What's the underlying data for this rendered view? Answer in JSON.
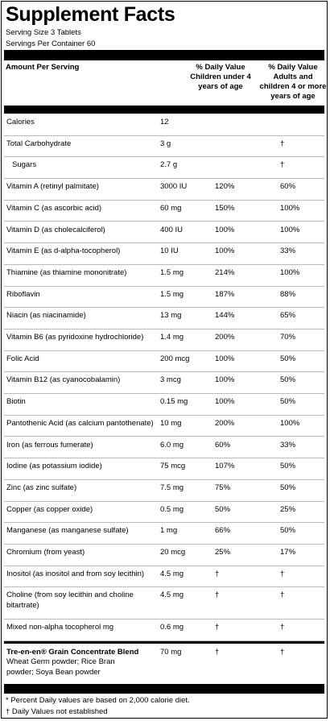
{
  "title": "Supplement Facts",
  "serving_size": "Serving Size 3 Tablets",
  "servings_per_container": "Servings Per Container 60",
  "header": {
    "amount": "Amount Per Serving",
    "child": "% Daily Value Children under 4 years of age",
    "adult": "% Daily Value Adults and children 4 or more years of age"
  },
  "rows": [
    {
      "name": "Calories",
      "amount": "12"
    },
    {
      "name": "Total Carbohydrate",
      "amount": "3 g",
      "adult": "†"
    },
    {
      "name": "Sugars",
      "amount": "2.7 g",
      "adult": "†"
    },
    {
      "name": "Vitamin A (retinyl palmitate)",
      "amount": "3000 IU",
      "child": "120%",
      "adult": "60%"
    },
    {
      "name": "Vitamin C (as ascorbic acid)",
      "amount": "60 mg",
      "child": "150%",
      "adult": "100%"
    },
    {
      "name": "Vitamin D (as cholecalciferol)",
      "amount": "400 IU",
      "child": "100%",
      "adult": "100%"
    },
    {
      "name": "Vitamin E (as d-alpha-tocopherol)",
      "amount": "10 IU",
      "child": "100%",
      "adult": "33%"
    },
    {
      "name": "Thiamine (as thiamine mononitrate)",
      "amount": "1.5 mg",
      "child": "214%",
      "adult": "100%"
    },
    {
      "name": "Riboflavin",
      "amount": "1.5 mg",
      "child": "187%",
      "adult": "88%"
    },
    {
      "name": "Niacin (as niacinamide)",
      "amount": "13 mg",
      "child": "144%",
      "adult": "65%"
    },
    {
      "name": "Vitamin B6 (as pyridoxine hydrochloride)",
      "amount": "1.4 mg",
      "child": "200%",
      "adult": "70%"
    },
    {
      "name": "Folic Acid",
      "amount": "200 mcg",
      "child": "100%",
      "adult": "50%"
    },
    {
      "name": "Vitamin B12 (as cyanocobalamin)",
      "amount": "3 mcg",
      "child": "100%",
      "adult": "50%"
    },
    {
      "name": "Biotin",
      "amount": "0.15 mg",
      "child": "100%",
      "adult": "50%"
    },
    {
      "name": "Pantothenic Acid (as calcium pantothenate)",
      "amount": "10 mg",
      "child": "200%",
      "adult": "100%"
    },
    {
      "name": "Iron (as ferrous fumerate)",
      "amount": "6.0 mg",
      "child": "60%",
      "adult": "33%"
    },
    {
      "name": "Iodine (as potassium iodide)",
      "amount": "75 mcg",
      "child": "107%",
      "adult": "50%"
    },
    {
      "name": "Zinc (as zinc sulfate)",
      "amount": "7.5 mg",
      "child": "75%",
      "adult": "50%"
    },
    {
      "name": "Copper (as copper oxide)",
      "amount": "0.5 mg",
      "child": "50%",
      "adult": "25%"
    },
    {
      "name": "Manganese (as manganese sulfate)",
      "amount": "1 mg",
      "child": "66%",
      "adult": "50%"
    },
    {
      "name": "Chromium (from yeast)",
      "amount": "20 mcg",
      "child": "25%",
      "adult": "17%"
    },
    {
      "name": "Inositol (as inositol and from soy lecithin)",
      "amount": "4.5 mg",
      "child": "†",
      "adult": "†"
    },
    {
      "name": "Choline (from soy lecithin and choline bitartrate)",
      "amount": "4.5 mg",
      "child": "†",
      "adult": "†"
    },
    {
      "name": "Mixed non-alpha tocopherol mg",
      "amount": "0.6 mg",
      "child": "†",
      "adult": "†"
    }
  ],
  "blend": {
    "name": "Tre-en-en® Grain Concentrate Blend",
    "ingredients": "Wheat Germ powder; Rice Bran powder; Soya Bean powder",
    "amount": "70 mg",
    "child": "†",
    "adult": "†"
  },
  "footnotes": [
    "* Percent Daily values are based on 2,000 calorie diet.",
    "† Daily Values not established"
  ]
}
